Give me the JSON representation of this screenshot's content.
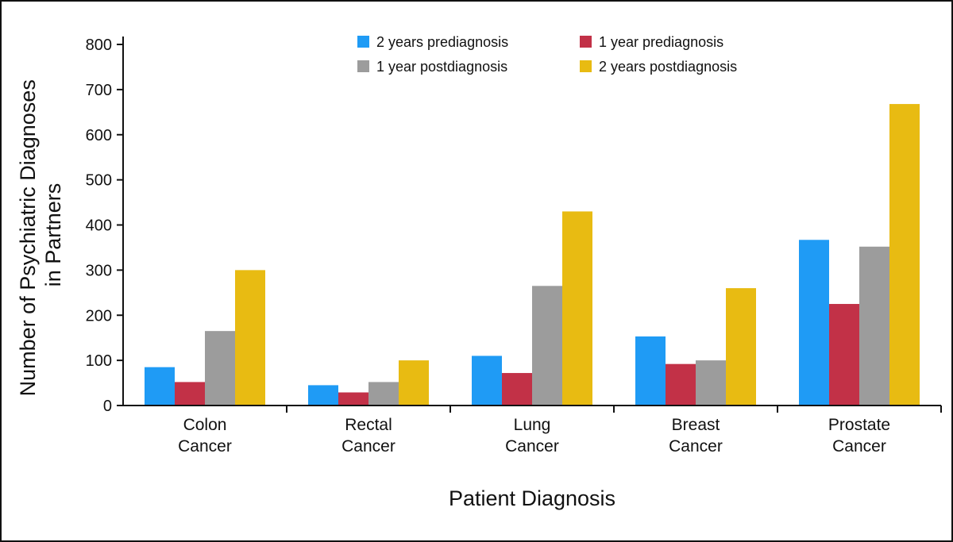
{
  "chart_data": {
    "type": "bar",
    "categories": [
      [
        "Colon",
        "Cancer"
      ],
      [
        "Rectal",
        "Cancer"
      ],
      [
        "Lung",
        "Cancer"
      ],
      [
        "Breast",
        "Cancer"
      ],
      [
        "Prostate",
        "Cancer"
      ]
    ],
    "series": [
      {
        "name": "2 years prediagnosis",
        "color": "#1f9bf5",
        "values": [
          85,
          45,
          110,
          153,
          367
        ]
      },
      {
        "name": "1 year prediagnosis",
        "color": "#c23147",
        "values": [
          52,
          29,
          72,
          92,
          225
        ]
      },
      {
        "name": "1 year postdiagnosis",
        "color": "#9c9c9c",
        "values": [
          165,
          52,
          265,
          100,
          352
        ]
      },
      {
        "name": "2 years postdiagnosis",
        "color": "#e8bb12",
        "values": [
          300,
          100,
          430,
          260,
          668
        ]
      }
    ],
    "ylabel": [
      "Number of Psychiatric Diagnoses",
      "in Partners"
    ],
    "xlabel": "Patient Diagnosis",
    "ylim": [
      0,
      800
    ],
    "yticks": [
      0,
      100,
      200,
      300,
      400,
      500,
      600,
      700,
      800
    ],
    "grid": false,
    "legend_position": "top-center, two columns"
  }
}
